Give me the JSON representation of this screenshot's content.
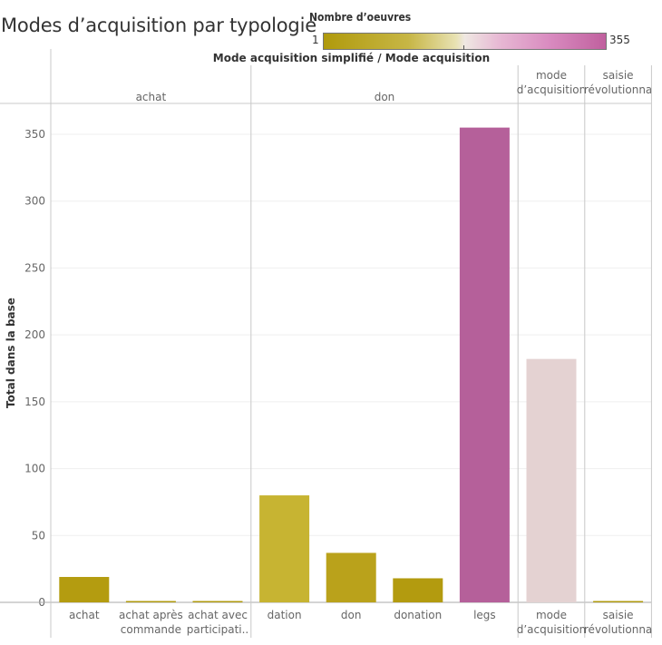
{
  "title": "Modes d’acquisition par typologie",
  "legend": {
    "title": "Nombre d’oeuvres",
    "min_label": "1",
    "max_label": "355",
    "color_min": "#b09a0c",
    "color_mid": "#efe8e2",
    "color_max": "#c0609e"
  },
  "header_title": "Mode acquisition simplifié / Mode acquisition",
  "chart_data": {
    "type": "bar",
    "ylabel": "Total dans la base",
    "ylim": [
      0,
      370
    ],
    "yticks": [
      0,
      50,
      100,
      150,
      200,
      250,
      300,
      350
    ],
    "groups": [
      {
        "name": "achat",
        "name_lines": [
          "achat"
        ],
        "categories": [
          {
            "label_lines": [
              "achat"
            ],
            "value": 19,
            "color": "#b49c10"
          },
          {
            "label_lines": [
              "achat après",
              "commande"
            ],
            "value": 1,
            "color": "#b09a0c"
          },
          {
            "label_lines": [
              "achat avec",
              "participati.."
            ],
            "value": 1,
            "color": "#b09a0c"
          }
        ]
      },
      {
        "name": "don",
        "name_lines": [
          "don"
        ],
        "categories": [
          {
            "label_lines": [
              "dation"
            ],
            "value": 80,
            "color": "#c7b432"
          },
          {
            "label_lines": [
              "don"
            ],
            "value": 37,
            "color": "#baa21b"
          },
          {
            "label_lines": [
              "donation"
            ],
            "value": 18,
            "color": "#b39b0f"
          },
          {
            "label_lines": [
              "legs"
            ],
            "value": 355,
            "color": "#b5609a"
          }
        ]
      },
      {
        "name": "mode d’acquisition",
        "name_lines": [
          "mode",
          "d’acquisition"
        ],
        "categories": [
          {
            "label_lines": [
              "mode",
              "d’acquisition"
            ],
            "value": 182,
            "color": "#e4d2d2"
          }
        ]
      },
      {
        "name": "saisie révolutionnaire",
        "name_lines": [
          "saisie",
          "révolutionna"
        ],
        "categories": [
          {
            "label_lines": [
              "saisie",
              "révolutionna"
            ],
            "value": 1,
            "color": "#b09a0c"
          }
        ]
      }
    ]
  }
}
